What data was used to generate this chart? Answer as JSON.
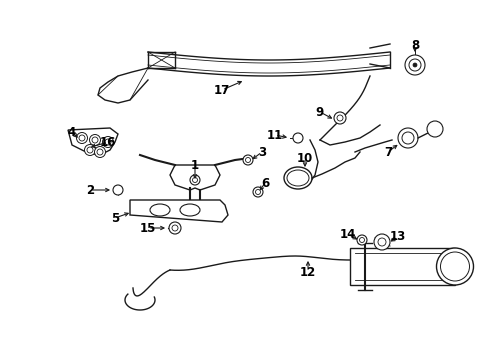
{
  "bg_color": "#ffffff",
  "line_color": "#1a1a1a",
  "label_color": "#000000",
  "label_fontsize": 8.5,
  "fig_width": 4.89,
  "fig_height": 3.6,
  "dpi": 100
}
